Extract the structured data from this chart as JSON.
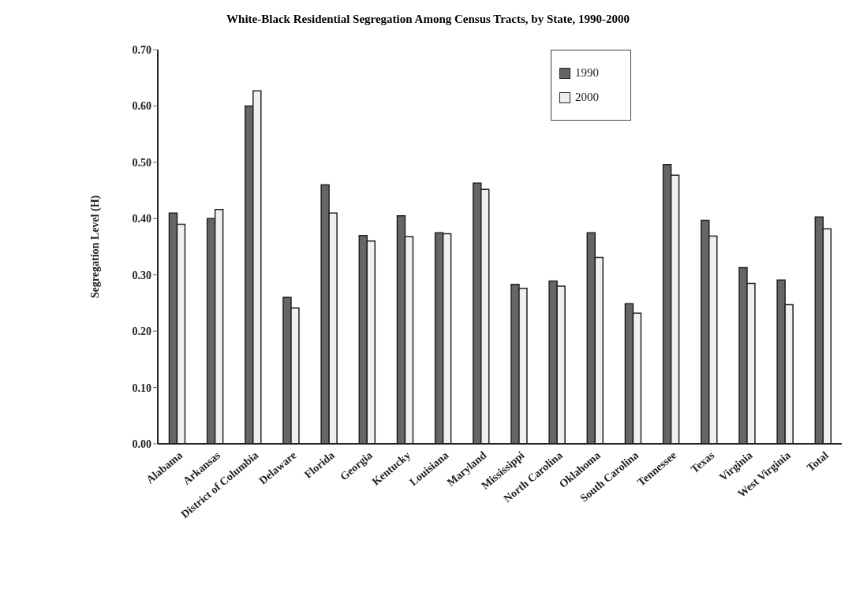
{
  "chart_data": {
    "type": "bar",
    "title": "White-Black Residential Segregation Among Census Tracts, by State, 1990-2000",
    "ylabel": "Segregation Level (H)",
    "categories": [
      "Alabama",
      "Arkansas",
      "District of Columbia",
      "Delaware",
      "Florida",
      "Georgia",
      "Kentucky",
      "Louisiana",
      "Maryland",
      "Mississippi",
      "North Carolina",
      "Oklahoma",
      "South Carolina",
      "Tennessee",
      "Texas",
      "Virginia",
      "West Virginia",
      "Total"
    ],
    "series": [
      {
        "name": "1990",
        "color": "#666666",
        "values": [
          0.41,
          0.4,
          0.6,
          0.26,
          0.46,
          0.37,
          0.405,
          0.375,
          0.463,
          0.283,
          0.289,
          0.375,
          0.249,
          0.496,
          0.397,
          0.313,
          0.291,
          0.403
        ]
      },
      {
        "name": "2000",
        "color": "#f0f0f0",
        "values": [
          0.39,
          0.416,
          0.627,
          0.241,
          0.41,
          0.36,
          0.368,
          0.373,
          0.452,
          0.276,
          0.28,
          0.331,
          0.232,
          0.477,
          0.369,
          0.285,
          0.247,
          0.382
        ]
      }
    ],
    "ylim": [
      0,
      0.7
    ],
    "yticks": [
      {
        "value": 0,
        "label": "0.00"
      },
      {
        "value": 0.1,
        "label": "0.10"
      },
      {
        "value": 0.2,
        "label": "0.20"
      },
      {
        "value": 0.3,
        "label": "0.30"
      },
      {
        "value": 0.4,
        "label": "0.40"
      },
      {
        "value": 0.5,
        "label": "0.50"
      },
      {
        "value": 0.6,
        "label": "0.60"
      },
      {
        "value": 0.7,
        "label": "0.70"
      }
    ],
    "grid": false,
    "legend": "top"
  }
}
